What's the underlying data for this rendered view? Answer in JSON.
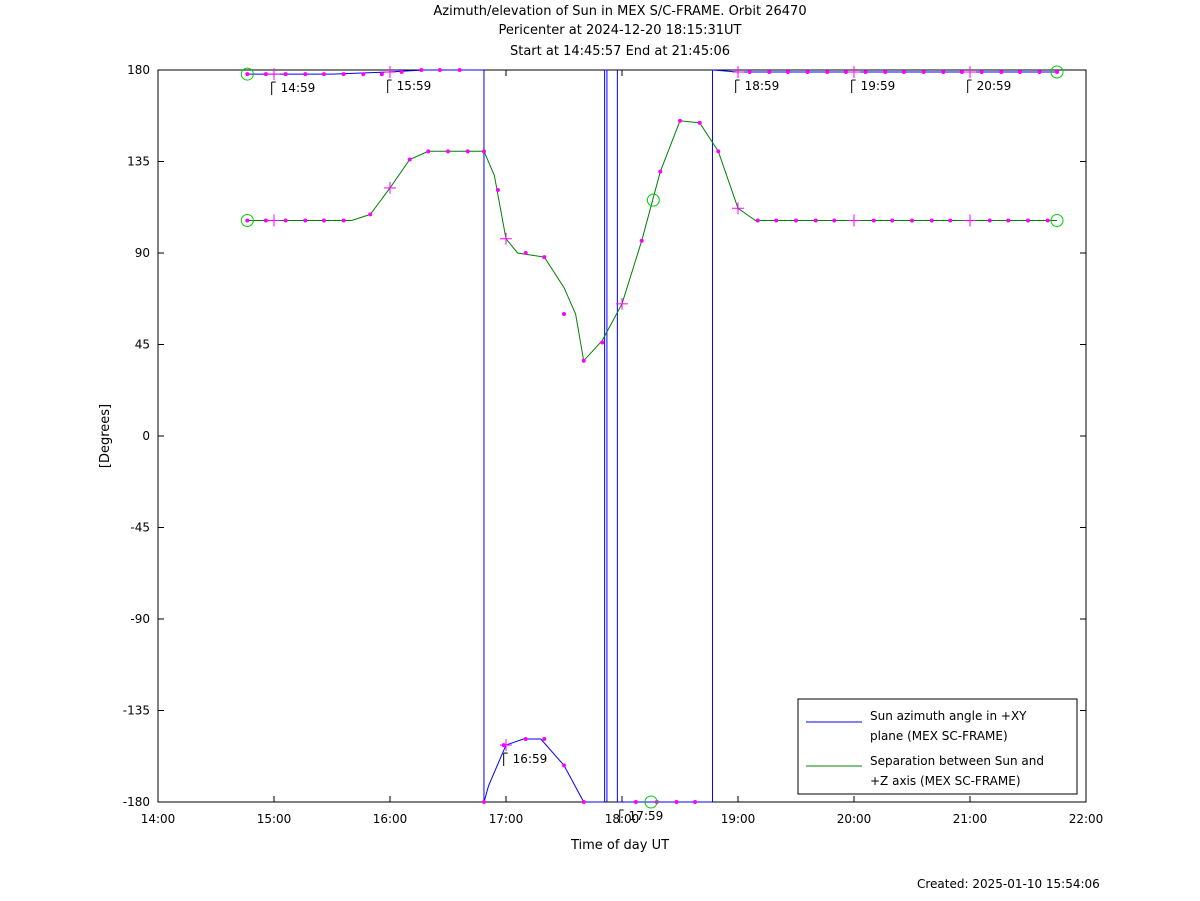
{
  "header": {
    "title": "Azimuth/elevation of Sun in MEX S/C-FRAME.  Orbit 26470",
    "subtitle1": "Pericenter at 2024-12-20 18:15:31UT",
    "subtitle2": "Start at 14:45:57 End at 21:45:06"
  },
  "footer": {
    "created": "Created: 2025-01-10 15:54:06"
  },
  "chart_data": {
    "type": "line",
    "title": "Azimuth/elevation of Sun in MEX S/C-FRAME.  Orbit 26470",
    "xlabel": "Time of day UT",
    "ylabel": "[Degrees]",
    "xlim": [
      14.0,
      22.0
    ],
    "ylim": [
      -180,
      180
    ],
    "x_ticks": [
      14,
      15,
      16,
      17,
      18,
      19,
      20,
      21,
      22
    ],
    "x_tick_labels": [
      "14:00",
      "15:00",
      "16:00",
      "17:00",
      "18:00",
      "19:00",
      "20:00",
      "21:00",
      "22:00"
    ],
    "y_ticks": [
      180,
      135,
      90,
      45,
      0,
      -45,
      -90,
      -135,
      -180
    ],
    "y_tick_labels": [
      "180",
      "135",
      "90",
      "45",
      "0",
      "-45",
      "-90",
      "-135",
      "-180"
    ],
    "grid": false,
    "legend_position": "bottom-right",
    "series": [
      {
        "name": "Sun azimuth angle in +XY plane (MEX SC-FRAME)",
        "legend_lines": [
          "Sun azimuth angle in +XY",
          "plane (MEX SC-FRAME)"
        ],
        "color": "#0000ff",
        "segments": [
          [
            [
              14.77,
              178
            ],
            [
              15.0,
              178
            ],
            [
              15.5,
              178
            ],
            [
              15.98,
              179
            ],
            [
              16.3,
              180
            ],
            [
              16.6,
              180
            ],
            [
              16.81,
              180
            ]
          ],
          [
            [
              16.81,
              -180
            ],
            [
              16.85,
              -172
            ],
            [
              17.0,
              -152
            ],
            [
              17.15,
              -149
            ],
            [
              17.3,
              -149
            ],
            [
              17.5,
              -162
            ],
            [
              17.67,
              -180
            ],
            [
              17.85,
              -180
            ]
          ],
          [
            [
              17.85,
              180
            ],
            [
              17.87,
              180
            ]
          ],
          [
            [
              17.96,
              -180
            ],
            [
              18.2,
              -180
            ],
            [
              18.5,
              -180
            ],
            [
              18.78,
              -180
            ]
          ],
          [
            [
              18.78,
              180
            ],
            [
              19.0,
              179
            ],
            [
              19.5,
              179
            ],
            [
              20.0,
              179
            ],
            [
              20.5,
              179
            ],
            [
              21.0,
              179
            ],
            [
              21.5,
              179
            ],
            [
              21.75,
              179
            ]
          ]
        ],
        "vertical_jumps": [
          16.81,
          17.85,
          17.87,
          17.96,
          18.78
        ]
      },
      {
        "name": "Separation between Sun and +Z axis (MEX SC-FRAME)",
        "legend_lines": [
          "Separation between Sun and",
          "+Z axis (MEX SC-FRAME)"
        ],
        "color": "#008000",
        "points": [
          [
            14.77,
            106
          ],
          [
            15.0,
            106
          ],
          [
            15.5,
            106
          ],
          [
            15.67,
            106
          ],
          [
            15.83,
            109
          ],
          [
            16.0,
            122
          ],
          [
            16.17,
            136
          ],
          [
            16.33,
            140
          ],
          [
            16.5,
            140
          ],
          [
            16.67,
            140
          ],
          [
            16.81,
            140
          ],
          [
            16.9,
            128
          ],
          [
            17.0,
            97
          ],
          [
            17.1,
            90
          ],
          [
            17.33,
            88
          ],
          [
            17.5,
            73
          ],
          [
            17.6,
            60
          ],
          [
            17.67,
            37
          ],
          [
            17.83,
            47
          ],
          [
            18.0,
            65
          ],
          [
            18.17,
            96
          ],
          [
            18.33,
            130
          ],
          [
            18.5,
            155
          ],
          [
            18.67,
            154
          ],
          [
            18.83,
            140
          ],
          [
            19.0,
            112
          ],
          [
            19.15,
            106
          ],
          [
            19.5,
            106
          ],
          [
            20.0,
            106
          ],
          [
            20.5,
            106
          ],
          [
            21.0,
            106
          ],
          [
            21.5,
            106
          ],
          [
            21.75,
            106
          ]
        ]
      }
    ],
    "markers": {
      "dot_color": "#ff00ff",
      "dot_series_0": [
        [
          14.77,
          178
        ],
        [
          14.93,
          178
        ],
        [
          15.1,
          178
        ],
        [
          15.27,
          178
        ],
        [
          15.43,
          178
        ],
        [
          15.6,
          178
        ],
        [
          15.77,
          178
        ],
        [
          15.93,
          178
        ],
        [
          16.1,
          179
        ],
        [
          16.27,
          180
        ],
        [
          16.43,
          180
        ],
        [
          16.6,
          180
        ],
        [
          16.81,
          -180
        ],
        [
          16.98,
          -152
        ],
        [
          17.17,
          -149
        ],
        [
          17.33,
          -149
        ],
        [
          17.5,
          -162
        ],
        [
          17.67,
          -180
        ],
        [
          18.12,
          -180
        ],
        [
          18.3,
          -180
        ],
        [
          18.47,
          -180
        ],
        [
          18.63,
          -180
        ],
        [
          19.1,
          179
        ],
        [
          19.27,
          179
        ],
        [
          19.43,
          179
        ],
        [
          19.6,
          179
        ],
        [
          19.77,
          179
        ],
        [
          19.93,
          179
        ],
        [
          20.1,
          179
        ],
        [
          20.27,
          179
        ],
        [
          20.43,
          179
        ],
        [
          20.6,
          179
        ],
        [
          20.77,
          179
        ],
        [
          20.93,
          179
        ],
        [
          21.1,
          179
        ],
        [
          21.27,
          179
        ],
        [
          21.43,
          179
        ],
        [
          21.6,
          179
        ],
        [
          21.75,
          179
        ]
      ],
      "dot_series_1": [
        [
          14.77,
          106
        ],
        [
          14.93,
          106
        ],
        [
          15.1,
          106
        ],
        [
          15.27,
          106
        ],
        [
          15.43,
          106
        ],
        [
          15.6,
          106
        ],
        [
          15.83,
          109
        ],
        [
          16.17,
          136
        ],
        [
          16.33,
          140
        ],
        [
          16.5,
          140
        ],
        [
          16.67,
          140
        ],
        [
          16.81,
          140
        ],
        [
          16.93,
          121
        ],
        [
          17.17,
          90
        ],
        [
          17.33,
          88
        ],
        [
          17.5,
          60
        ],
        [
          17.67,
          37
        ],
        [
          17.83,
          46
        ],
        [
          18.17,
          96
        ],
        [
          18.33,
          130
        ],
        [
          18.5,
          155
        ],
        [
          18.67,
          154
        ],
        [
          18.83,
          140
        ],
        [
          19.17,
          106
        ],
        [
          19.33,
          106
        ],
        [
          19.5,
          106
        ],
        [
          19.67,
          106
        ],
        [
          19.83,
          106
        ],
        [
          20.17,
          106
        ],
        [
          20.33,
          106
        ],
        [
          20.5,
          106
        ],
        [
          20.67,
          106
        ],
        [
          20.83,
          106
        ],
        [
          21.17,
          106
        ],
        [
          21.33,
          106
        ],
        [
          21.5,
          106
        ],
        [
          21.67,
          106
        ]
      ],
      "hour_crosses_series_0": [
        [
          15.0,
          178
        ],
        [
          16.0,
          179
        ],
        [
          17.0,
          -152
        ],
        [
          19.0,
          179
        ],
        [
          20.0,
          179
        ],
        [
          21.0,
          179
        ]
      ],
      "hour_crosses_series_1": [
        [
          15.0,
          106
        ],
        [
          16.0,
          122
        ],
        [
          17.0,
          97
        ],
        [
          18.0,
          65
        ],
        [
          19.0,
          112
        ],
        [
          20.0,
          106
        ],
        [
          21.0,
          106
        ]
      ],
      "circles": [
        [
          14.77,
          178
        ],
        [
          14.77,
          106
        ],
        [
          21.75,
          179
        ],
        [
          21.75,
          106
        ],
        [
          18.25,
          -180
        ],
        [
          18.27,
          116
        ]
      ],
      "circle_color": "#00cc00"
    },
    "annotations": [
      {
        "label": "14:59",
        "x": 14.98,
        "y": 178
      },
      {
        "label": "15:59",
        "x": 15.98,
        "y": 179
      },
      {
        "label": "16:59",
        "x": 16.98,
        "y": -152
      },
      {
        "label": "17:59",
        "x": 17.98,
        "y": -180
      },
      {
        "label": "18:59",
        "x": 18.98,
        "y": 179
      },
      {
        "label": "19:59",
        "x": 19.98,
        "y": 179
      },
      {
        "label": "20:59",
        "x": 20.98,
        "y": 179
      }
    ]
  }
}
